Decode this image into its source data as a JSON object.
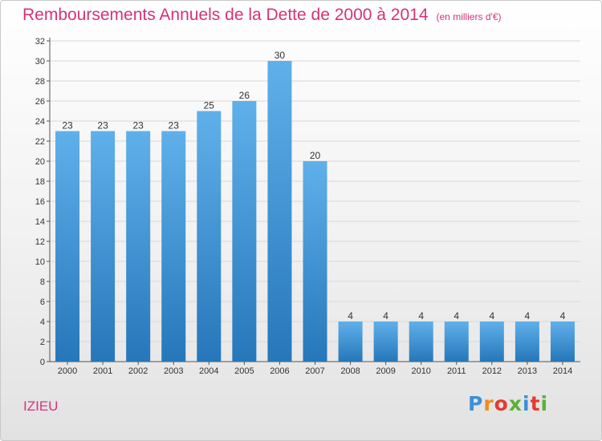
{
  "title": "Remboursements Annuels de la Dette de 2000 à 2014",
  "unit": "(en milliers d'€)",
  "commune": "IZIEU",
  "logo": {
    "text": "Proxiti",
    "letter_colors": [
      "#3b8fd9",
      "#f08a1c",
      "#e53b2f",
      "#5ab232",
      "#3b8fd9",
      "#e53b2f",
      "#5ab232"
    ]
  },
  "colors": {
    "bar_top": "#5fb0ea",
    "bar_bottom": "#2677ba",
    "title": "#d6327a",
    "grid": "#d8d8d8"
  },
  "chart_data": {
    "type": "bar",
    "categories": [
      "2000",
      "2001",
      "2002",
      "2003",
      "2004",
      "2005",
      "2006",
      "2007",
      "2008",
      "2009",
      "2010",
      "2011",
      "2012",
      "2013",
      "2014"
    ],
    "values": [
      23,
      23,
      23,
      23,
      25,
      26,
      30,
      20,
      4,
      4,
      4,
      4,
      4,
      4,
      4
    ],
    "title": "Remboursements Annuels de la Dette de 2000 à 2014",
    "ylim": [
      0,
      32
    ],
    "yticks": [
      0,
      2,
      4,
      6,
      8,
      10,
      12,
      14,
      16,
      18,
      20,
      22,
      24,
      26,
      28,
      30,
      32
    ],
    "grid": true,
    "data_labels": true
  }
}
